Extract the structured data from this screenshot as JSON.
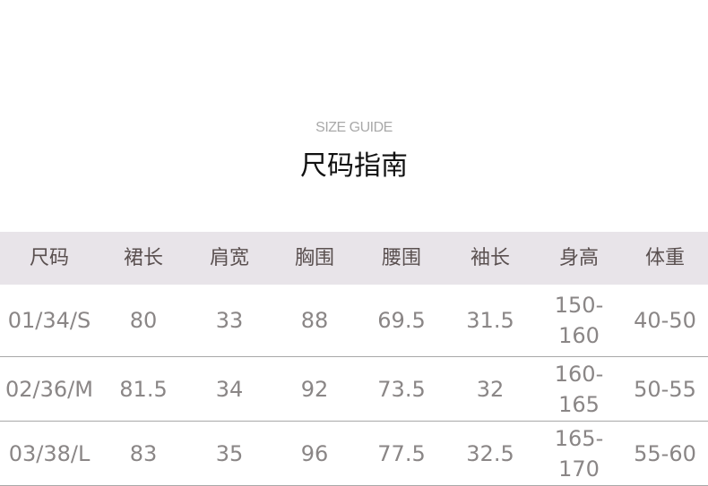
{
  "subtitle": "SIZE GUIDE",
  "title": "尺码指南",
  "colors": {
    "header_bg": "#e8e4e9",
    "header_text": "#5a5050",
    "cell_text": "#8a8686",
    "divider": "#a8a8a8"
  },
  "table": {
    "headers": [
      "尺码",
      "裙长",
      "肩宽",
      "胸围",
      "腰围",
      "袖长",
      "身高",
      "体重"
    ],
    "rows": [
      [
        "01/34/S",
        "80",
        "33",
        "88",
        "69.5",
        "31.5",
        "150-160",
        "40-50"
      ],
      [
        "02/36/M",
        "81.5",
        "34",
        "92",
        "73.5",
        "32",
        "160-165",
        "50-55"
      ],
      [
        "03/38/L",
        "83",
        "35",
        "96",
        "77.5",
        "32.5",
        "165-170",
        "55-60"
      ]
    ]
  }
}
